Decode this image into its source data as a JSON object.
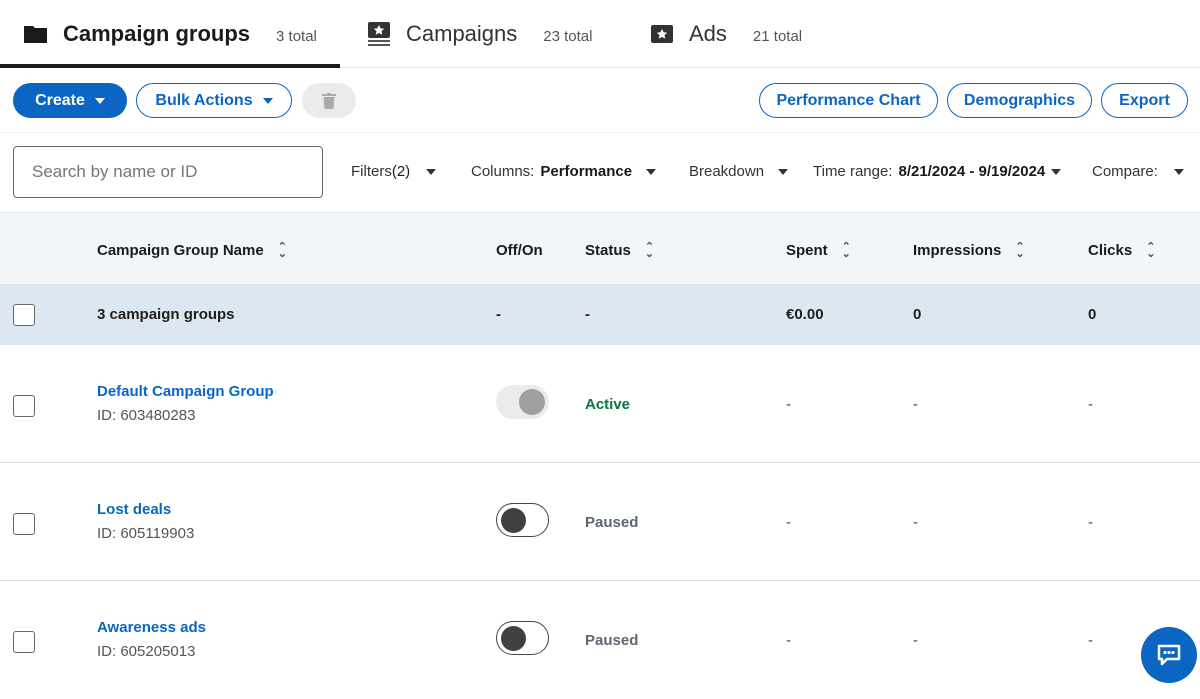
{
  "tabs": [
    {
      "label": "Campaign groups",
      "count": "3 total",
      "icon": "folder-icon",
      "active": true
    },
    {
      "label": "Campaigns",
      "count": "23 total",
      "icon": "campaign-stack-icon"
    },
    {
      "label": "Ads",
      "count": "21 total",
      "icon": "ad-icon"
    }
  ],
  "toolbar": {
    "create": "Create",
    "bulk_actions": "Bulk Actions",
    "performance_chart": "Performance Chart",
    "demographics": "Demographics",
    "export": "Export"
  },
  "filters": {
    "search_placeholder": "Search by name or ID",
    "filters_label": "Filters",
    "filters_count": "(2)",
    "columns_label": "Columns:",
    "columns_value": "Performance",
    "breakdown": "Breakdown",
    "time_range_label": "Time range:",
    "time_range_value": "8/21/2024 - 9/19/2024",
    "compare": "Compare:"
  },
  "table": {
    "headers": {
      "name": "Campaign Group Name",
      "offon": "Off/On",
      "status": "Status",
      "spent": "Spent",
      "impressions": "Impressions",
      "clicks": "Clicks"
    },
    "summary": {
      "label": "3 campaign groups",
      "offon": "-",
      "status": "-",
      "spent": "€0.00",
      "impressions": "0",
      "clicks": "0"
    },
    "rows": [
      {
        "name": "Default Campaign Group",
        "id": "ID: 603480283",
        "on": true,
        "status": "Active",
        "spent": "-",
        "impressions": "-",
        "clicks": "-"
      },
      {
        "name": "Lost deals",
        "id": "ID: 605119903",
        "on": false,
        "status": "Paused",
        "spent": "-",
        "impressions": "-",
        "clicks": "-"
      },
      {
        "name": "Awareness ads",
        "id": "ID: 605205013",
        "on": false,
        "status": "Paused",
        "spent": "-",
        "impressions": "-",
        "clicks": "-"
      }
    ]
  },
  "colors": {
    "accent": "#0a66c2",
    "active": "#057642",
    "paused": "#5e6670"
  }
}
